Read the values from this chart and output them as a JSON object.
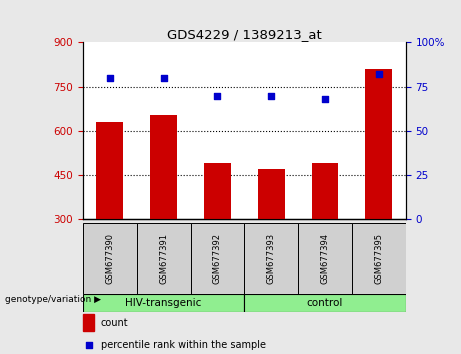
{
  "title": "GDS4229 / 1389213_at",
  "categories": [
    "GSM677390",
    "GSM677391",
    "GSM677392",
    "GSM677393",
    "GSM677394",
    "GSM677395"
  ],
  "bar_values": [
    630,
    655,
    490,
    470,
    490,
    810
  ],
  "bar_bottom": 300,
  "percentile_values": [
    80,
    80,
    70,
    70,
    68,
    82
  ],
  "bar_color": "#cc0000",
  "dot_color": "#0000cc",
  "left_ylim": [
    300,
    900
  ],
  "right_ylim": [
    0,
    100
  ],
  "left_yticks": [
    300,
    450,
    600,
    750,
    900
  ],
  "right_yticks": [
    0,
    25,
    50,
    75,
    100
  ],
  "right_yticklabels": [
    "0",
    "25",
    "50",
    "75",
    "100%"
  ],
  "hlines": [
    450,
    600,
    750
  ],
  "groups": [
    {
      "label": "HIV-transgenic",
      "start": 0,
      "end": 3,
      "color": "#90ee90"
    },
    {
      "label": "control",
      "start": 3,
      "end": 6,
      "color": "#90ee90"
    }
  ],
  "group_label_prefix": "genotype/variation ▶",
  "legend_count_label": "count",
  "legend_pct_label": "percentile rank within the sample",
  "tick_label_color_left": "#cc0000",
  "tick_label_color_right": "#0000cc",
  "bg_color": "#e8e8e8",
  "plot_bg": "#ffffff"
}
